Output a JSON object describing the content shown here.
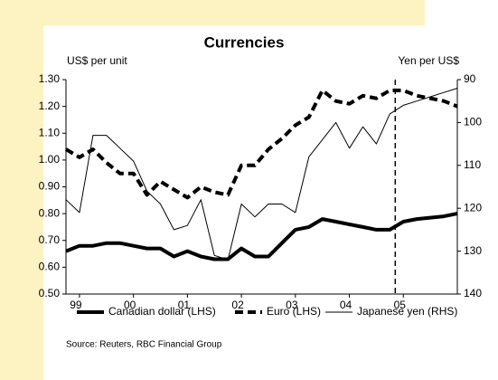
{
  "chart_data": {
    "type": "line",
    "title": "Currencies",
    "ylabel": "US$ per unit",
    "y2label": "Yen per US$",
    "source": "Source: Reuters, RBC Financial Group",
    "x": [
      1998.75,
      1999.0,
      1999.25,
      1999.5,
      1999.75,
      2000.0,
      2000.25,
      2000.5,
      2000.75,
      2001.0,
      2001.25,
      2001.5,
      2001.75,
      2002.0,
      2002.25,
      2002.5,
      2002.75,
      2003.0,
      2003.25,
      2003.5,
      2003.75,
      2004.0,
      2004.25,
      2004.5,
      2004.75,
      2005.0,
      2005.25,
      2005.5,
      2005.75,
      2006.0
    ],
    "xlim": [
      1998.75,
      2006.0
    ],
    "xticks": [
      {
        "value": 1999,
        "label": "99"
      },
      {
        "value": 2000,
        "label": "00"
      },
      {
        "value": 2001,
        "label": "01"
      },
      {
        "value": 2002,
        "label": "02"
      },
      {
        "value": 2003,
        "label": "03"
      },
      {
        "value": 2004,
        "label": "04"
      },
      {
        "value": 2005,
        "label": "05"
      }
    ],
    "ylim": [
      0.5,
      1.3
    ],
    "yticks": [
      {
        "value": 0.5,
        "label": "0.50"
      },
      {
        "value": 0.6,
        "label": "0.60"
      },
      {
        "value": 0.7,
        "label": "0.70"
      },
      {
        "value": 0.8,
        "label": "0.80"
      },
      {
        "value": 0.9,
        "label": "0.90"
      },
      {
        "value": 1.0,
        "label": "1.00"
      },
      {
        "value": 1.1,
        "label": "1.10"
      },
      {
        "value": 1.2,
        "label": "1.20"
      },
      {
        "value": 1.3,
        "label": "1.30"
      }
    ],
    "y2lim": [
      140,
      90
    ],
    "y2ticks": [
      90,
      100,
      110,
      120,
      130,
      140
    ],
    "vline_x": 2004.85,
    "legend_position": "bottom",
    "series": [
      {
        "name": "Canadian dollar (LHS)",
        "color": "#000000",
        "style": "thick",
        "values": [
          0.66,
          0.68,
          0.68,
          0.69,
          0.69,
          0.68,
          0.67,
          0.67,
          0.64,
          0.66,
          0.64,
          0.63,
          0.63,
          0.67,
          0.64,
          0.64,
          0.69,
          0.74,
          0.75,
          0.78,
          0.77,
          0.76,
          0.75,
          0.74,
          0.74,
          0.77,
          0.78,
          0.785,
          0.79,
          0.8
        ]
      },
      {
        "name": "Euro (LHS)",
        "color": "#000000",
        "style": "thick-dashed",
        "values": [
          1.04,
          1.01,
          1.04,
          0.99,
          0.95,
          0.95,
          0.87,
          0.92,
          0.89,
          0.86,
          0.9,
          0.88,
          0.87,
          0.98,
          0.98,
          1.04,
          1.08,
          1.13,
          1.16,
          1.26,
          1.22,
          1.21,
          1.24,
          1.23,
          1.26,
          1.26,
          1.24,
          1.23,
          1.22,
          1.2
        ]
      },
      {
        "name": "Japanese yen (RHS)",
        "color": "#000000",
        "style": "thin",
        "axis": "y2",
        "values": [
          118,
          121,
          103,
          103,
          106,
          109,
          116,
          119,
          125,
          124,
          118,
          131,
          132,
          119,
          122,
          119,
          119,
          121,
          108,
          104,
          100,
          106,
          101,
          105,
          98,
          96,
          95,
          94,
          93,
          92
        ]
      }
    ]
  }
}
